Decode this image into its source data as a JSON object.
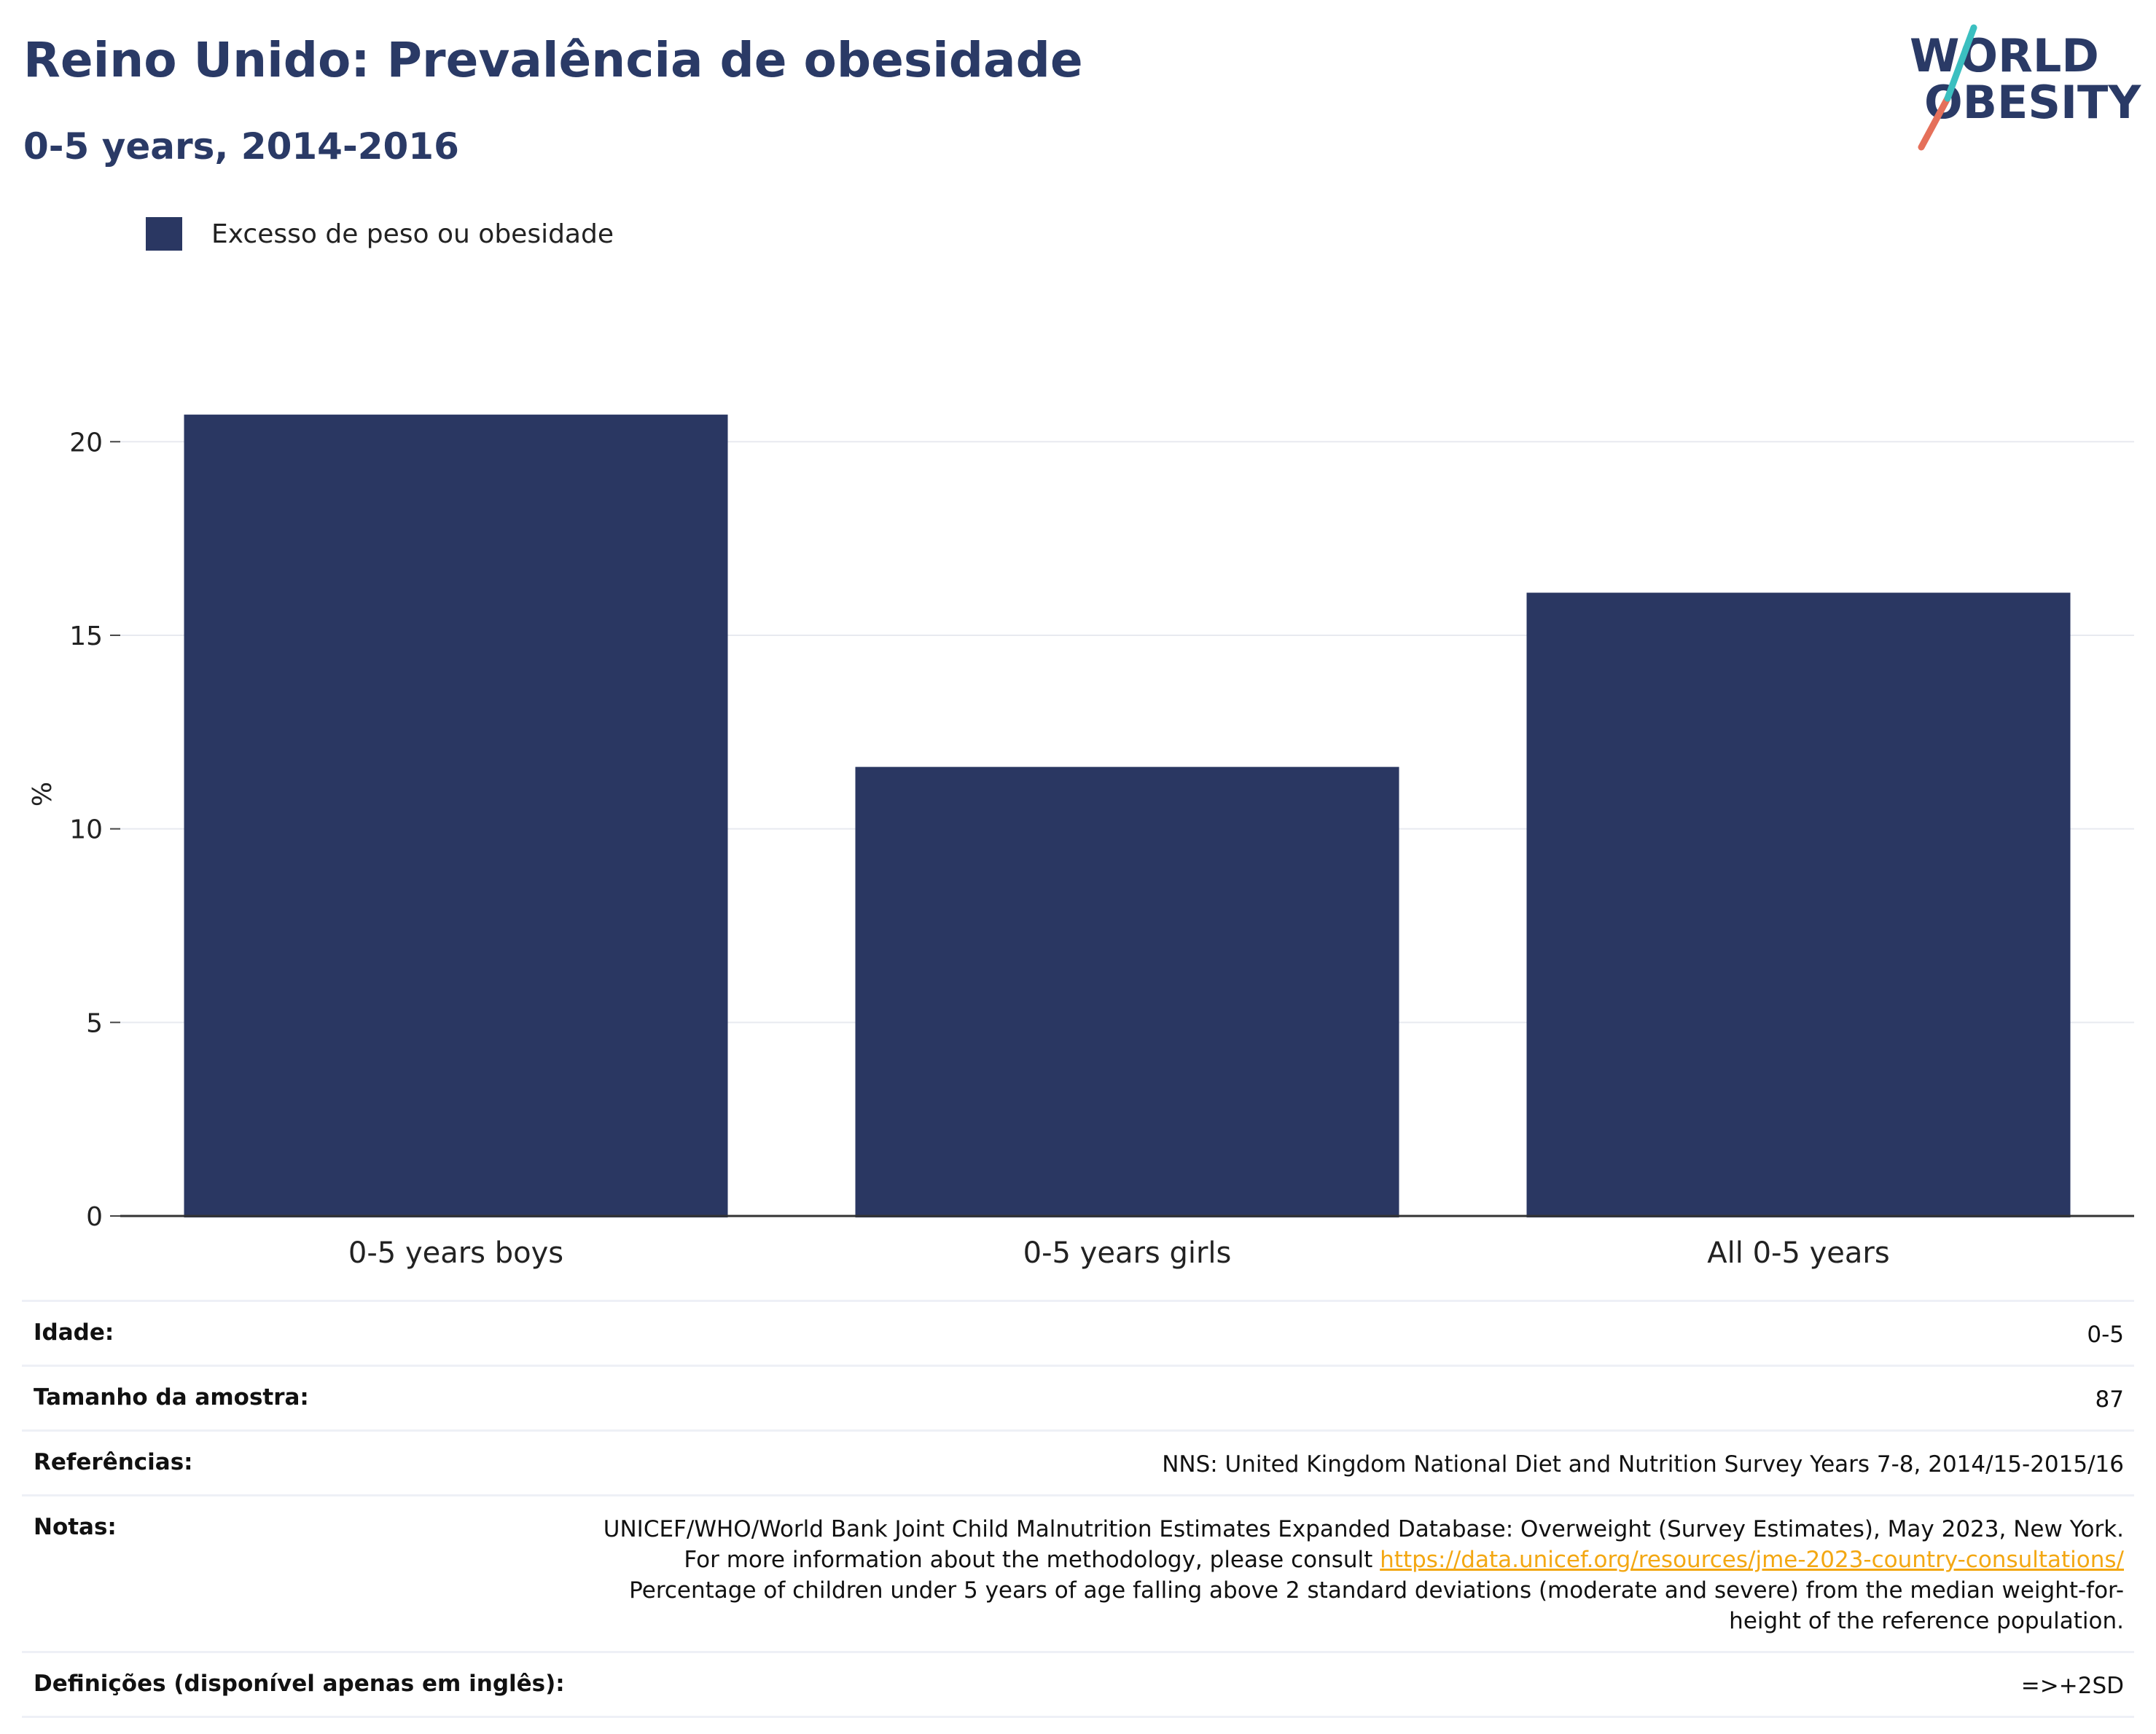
{
  "header": {
    "title": "Reino Unido: Prevalência de obesidade",
    "subtitle": "0-5 years, 2014-2016"
  },
  "logo": {
    "line1": "WORLD",
    "line2": "OBESITY",
    "icon": "world-obesity-logo"
  },
  "legend": {
    "label": "Excesso de peso ou obesidade",
    "color": "#2a3762"
  },
  "chart_data": {
    "type": "bar",
    "categories": [
      "0-5 years boys",
      "0-5 years girls",
      "All 0-5 years"
    ],
    "series": [
      {
        "name": "Excesso de peso ou obesidade",
        "values": [
          20.7,
          11.6,
          16.1
        ]
      }
    ],
    "ylabel": "%",
    "ylim": [
      0,
      22
    ],
    "yticks": [
      0,
      5,
      10,
      15,
      20
    ],
    "grid": true,
    "legend_position": "top-left",
    "bar_color": "#2a3762"
  },
  "info": {
    "rows": [
      {
        "label": "Idade:",
        "value": "0-5"
      },
      {
        "label": "Tamanho da amostra:",
        "value": "87"
      },
      {
        "label": "Referências:",
        "value": "NNS: United Kingdom National Diet and Nutrition Survey Years 7-8, 2014/15-2015/16"
      }
    ],
    "notes": {
      "label": "Notas:",
      "text_before": "UNICEF/WHO/World Bank Joint Child Malnutrition Estimates Expanded Database: Overweight (Survey Estimates), May 2023, New York. For more information about the methodology, please consult ",
      "link": "https://data.unicef.org/resources/jme-2023-country-consultations/",
      "text_after": " Percentage of children under 5 years of age falling above 2 standard deviations (moderate and severe) from the median weight-for-height of the reference population."
    },
    "definitions": {
      "label": "Definições (disponível apenas em inglês):",
      "value": "=>+2SD"
    }
  }
}
